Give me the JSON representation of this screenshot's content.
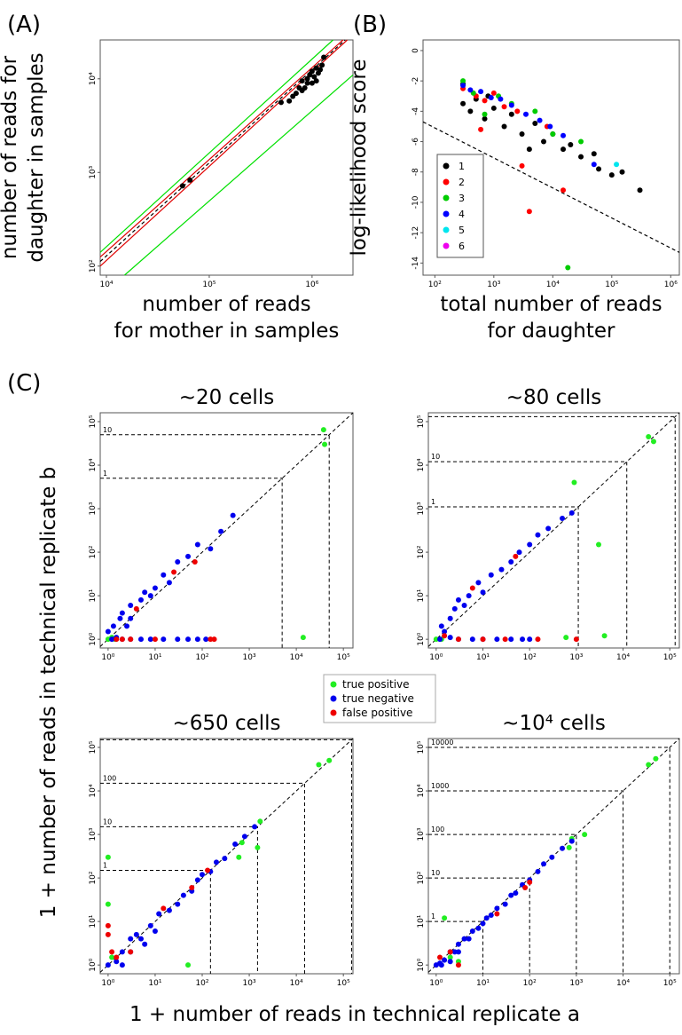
{
  "figure": {
    "panel_labels": [
      "(A)",
      "(B)",
      "(C)"
    ],
    "c_ylabel": "1 + number of reads in technical replicate b",
    "c_xlabel": "1 + number of reads in technical replicate a"
  },
  "chart_data": [
    {
      "type": "scatter",
      "log_x": true,
      "log_y": true,
      "xlabel": [
        "number of reads",
        "for mother in samples"
      ],
      "ylabel": [
        "number of reads for",
        "daughter in samples"
      ],
      "xlim": [
        8700,
        2500000
      ],
      "ylim": [
        80,
        26000
      ],
      "xticks": [
        {
          "value": 10000,
          "label": "10⁴"
        },
        {
          "value": 100000,
          "label": "10⁵"
        },
        {
          "value": 1000000,
          "label": "10⁶"
        }
      ],
      "yticks": [
        {
          "value": 100,
          "label": "10²"
        },
        {
          "value": 1000,
          "label": "10³"
        },
        {
          "value": 10000,
          "label": "10⁴"
        }
      ],
      "lines": [
        {
          "color": "#00e000",
          "dashed": false,
          "x": [
            8700,
            1600000
          ],
          "y": [
            140,
            26000
          ]
        },
        {
          "color": "#00e000",
          "dashed": false,
          "x": [
            15000,
            2500000
          ],
          "y": [
            80,
            11000
          ]
        },
        {
          "color": "#e00000",
          "dashed": false,
          "x": [
            8700,
            2000000
          ],
          "y": [
            125,
            26000
          ]
        },
        {
          "color": "#e00000",
          "dashed": false,
          "x": [
            8700,
            2200000
          ],
          "y": [
            100,
            26000
          ]
        },
        {
          "color": "#000000",
          "dashed": true,
          "x": [
            8700,
            2100000
          ],
          "y": [
            112,
            26000
          ]
        }
      ],
      "series": [
        {
          "color": "#000000",
          "x": [
            55000,
            65000,
            500000,
            600000,
            650000,
            700000,
            750000,
            800000,
            850000,
            900000,
            950000,
            1000000,
            1050000,
            1100000,
            1150000,
            1200000,
            1300000,
            1250000,
            900000,
            800000,
            1000000,
            1100000
          ],
          "values": [
            720,
            830,
            5600,
            5800,
            6500,
            7000,
            8000,
            9500,
            8000,
            10000,
            11000,
            12000,
            10500,
            13000,
            11500,
            12500,
            17000,
            14000,
            9000,
            7500,
            9000,
            9500
          ]
        }
      ]
    },
    {
      "type": "scatter",
      "log_x": true,
      "log_y": false,
      "xlabel": [
        "total number of reads",
        "for daughter"
      ],
      "ylabel": [
        "log-likelihood score"
      ],
      "xlim": [
        63,
        1400000
      ],
      "ylim": [
        -14.8,
        0.7
      ],
      "xticks": [
        {
          "value": 100,
          "label": "10²"
        },
        {
          "value": 1000,
          "label": "10³"
        },
        {
          "value": 10000,
          "label": "10⁴"
        },
        {
          "value": 100000,
          "label": "10⁵"
        },
        {
          "value": 1000000,
          "label": "10⁶"
        }
      ],
      "yticks": [
        0,
        -2,
        -4,
        -6,
        -8,
        -10,
        -12,
        -14
      ],
      "lines": [
        {
          "color": "#000000",
          "dashed": true,
          "x": [
            63,
            1400000
          ],
          "y": [
            -4.7,
            -13.3
          ]
        }
      ],
      "legend": "bottom-left",
      "series": [
        {
          "name": "1",
          "color": "#000000",
          "x": [
            300,
            400,
            500,
            700,
            1000,
            1500,
            2000,
            3000,
            5000,
            7000,
            10000,
            15000,
            20000,
            30000,
            50000,
            60000,
            100000,
            150000,
            300000,
            4000,
            800,
            300
          ],
          "values": [
            -3.5,
            -4,
            -3.2,
            -4.5,
            -3.8,
            -5,
            -4.2,
            -5.5,
            -4.8,
            -6,
            -5.5,
            -6.5,
            -6.2,
            -7,
            -6.8,
            -7.8,
            -8.2,
            -8,
            -9.2,
            -6.5,
            -3,
            -2.2
          ]
        },
        {
          "name": "2",
          "color": "#ff0000",
          "x": [
            300,
            500,
            700,
            1000,
            1500,
            2500,
            3000,
            4000,
            15000,
            8000,
            600
          ],
          "values": [
            -2.5,
            -3,
            -3.3,
            -2.8,
            -3.7,
            -4,
            -7.6,
            -10.6,
            -9.2,
            -5,
            -5.2
          ]
        },
        {
          "name": "3",
          "color": "#00cc00",
          "x": [
            300,
            450,
            700,
            1200,
            2000,
            5000,
            10000,
            30000,
            18000
          ],
          "values": [
            -2,
            -2.8,
            -4.2,
            -3,
            -3.5,
            -4,
            -5.5,
            -6,
            -14.3
          ]
        },
        {
          "name": "4",
          "color": "#0000ff",
          "x": [
            300,
            400,
            600,
            900,
            1300,
            2000,
            3500,
            6000,
            9000,
            15000,
            50000
          ],
          "values": [
            -2.3,
            -2.6,
            -2.7,
            -3.1,
            -3.2,
            -3.6,
            -4.2,
            -4.6,
            -5,
            -5.6,
            -7.5
          ]
        },
        {
          "name": "5",
          "color": "#00e5ee",
          "x": [
            120000
          ],
          "values": [
            -7.5
          ]
        },
        {
          "name": "6",
          "color": "#ee00ee",
          "x": [],
          "values": []
        }
      ]
    },
    {
      "type": "scatter",
      "log_x": true,
      "log_y": true,
      "title": "~20 cells",
      "diagonal": true,
      "legend": "below",
      "xlim": [
        0.68,
        160000
      ],
      "ylim": [
        0.63,
        160000
      ],
      "xticks": [
        {
          "value": 1,
          "label": "10⁰"
        },
        {
          "value": 10,
          "label": "10¹"
        },
        {
          "value": 100,
          "label": "10²"
        },
        {
          "value": 1000,
          "label": "10³"
        },
        {
          "value": 10000,
          "label": "10⁴"
        },
        {
          "value": 100000,
          "label": "10⁵"
        }
      ],
      "yticks": [
        {
          "value": 1,
          "label": "10⁰"
        },
        {
          "value": 10,
          "label": "10¹"
        },
        {
          "value": 100,
          "label": "10²"
        },
        {
          "value": 1000,
          "label": "10³"
        },
        {
          "value": 10000,
          "label": "10⁴"
        },
        {
          "value": 100000,
          "label": "10⁵"
        }
      ],
      "threshold_values": [
        5000,
        50000
      ],
      "threshold_labels": [
        "1",
        "10"
      ],
      "series": [
        {
          "name": "true positive",
          "color": "#22ee22",
          "x": [
            1,
            1.2,
            1.4,
            14000,
            40000,
            38000
          ],
          "values": [
            1,
            1.1,
            1,
            1.1,
            30000,
            65000
          ]
        },
        {
          "name": "true negative",
          "color": "#0000ee",
          "x": [
            1.2,
            1.5,
            2,
            3,
            5,
            8,
            15,
            30,
            50,
            80,
            120,
            1.3,
            1.8,
            2,
            3,
            3,
            5,
            6,
            10,
            15,
            20,
            30,
            50,
            80,
            150,
            250,
            450,
            1,
            2.5,
            8
          ],
          "values": [
            1,
            1.1,
            1,
            1,
            1,
            1,
            1,
            1,
            1,
            1,
            1,
            2,
            3,
            4,
            3,
            6,
            8,
            12,
            15,
            30,
            20,
            60,
            80,
            150,
            120,
            300,
            700,
            1.5,
            2,
            10
          ]
        },
        {
          "name": "false positive",
          "color": "#ee0000",
          "x": [
            1.5,
            2,
            3,
            10,
            150,
            180,
            4,
            25,
            70
          ],
          "values": [
            1,
            1,
            1,
            1,
            1,
            1,
            5,
            35,
            60
          ]
        }
      ]
    },
    {
      "type": "scatter",
      "log_x": true,
      "log_y": true,
      "title": "~80 cells",
      "diagonal": true,
      "xlim": [
        0.68,
        160000
      ],
      "ylim": [
        0.63,
        160000
      ],
      "xticks": [
        {
          "value": 1,
          "label": "10⁰"
        },
        {
          "value": 10,
          "label": "10¹"
        },
        {
          "value": 100,
          "label": "10²"
        },
        {
          "value": 1000,
          "label": "10³"
        },
        {
          "value": 10000,
          "label": "10⁴"
        },
        {
          "value": 100000,
          "label": "10⁵"
        }
      ],
      "yticks": [
        {
          "value": 1,
          "label": "10⁰"
        },
        {
          "value": 10,
          "label": "10¹"
        },
        {
          "value": 100,
          "label": "10²"
        },
        {
          "value": 1000,
          "label": "10³"
        },
        {
          "value": 10000,
          "label": "10⁴"
        },
        {
          "value": 100000,
          "label": "10⁵"
        }
      ],
      "threshold_values": [
        1100,
        12000,
        130000
      ],
      "threshold_labels": [
        "1",
        "10",
        null
      ],
      "series": [
        {
          "name": "true positive",
          "color": "#22ee22",
          "x": [
            1,
            1.3,
            600,
            900,
            3000,
            4000,
            35000,
            45000
          ],
          "values": [
            1,
            1,
            1.1,
            4000,
            150,
            1.2,
            45000,
            35000
          ]
        },
        {
          "name": "true negative",
          "color": "#0000ee",
          "x": [
            1.2,
            2,
            3,
            6,
            10,
            20,
            40,
            70,
            100,
            1.3,
            2,
            2.5,
            3,
            4,
            5,
            8,
            10,
            15,
            25,
            40,
            60,
            100,
            150,
            250,
            500,
            800,
            1.5
          ],
          "values": [
            1,
            1.1,
            1,
            1,
            1,
            1,
            1,
            1,
            1,
            2,
            3,
            5,
            8,
            6,
            10,
            20,
            12,
            30,
            40,
            60,
            100,
            150,
            250,
            350,
            600,
            800,
            1.5
          ]
        },
        {
          "name": "false positive",
          "color": "#ee0000",
          "x": [
            1.5,
            3,
            10,
            30,
            150,
            6,
            50,
            1000
          ],
          "values": [
            1.2,
            1,
            1,
            1,
            1,
            15,
            80,
            1
          ]
        }
      ]
    },
    {
      "type": "scatter",
      "log_x": true,
      "log_y": true,
      "title": "~650 cells",
      "diagonal": true,
      "xlim": [
        0.68,
        160000
      ],
      "ylim": [
        0.63,
        160000
      ],
      "xticks": [
        {
          "value": 1,
          "label": "10⁰"
        },
        {
          "value": 10,
          "label": "10¹"
        },
        {
          "value": 100,
          "label": "10²"
        },
        {
          "value": 1000,
          "label": "10³"
        },
        {
          "value": 10000,
          "label": "10⁴"
        },
        {
          "value": 100000,
          "label": "10⁵"
        }
      ],
      "yticks": [
        {
          "value": 1,
          "label": "10⁰"
        },
        {
          "value": 10,
          "label": "10¹"
        },
        {
          "value": 100,
          "label": "10²"
        },
        {
          "value": 1000,
          "label": "10³"
        },
        {
          "value": 10000,
          "label": "10⁴"
        },
        {
          "value": 100000,
          "label": "10⁵"
        }
      ],
      "threshold_values": [
        150,
        1500,
        15000,
        150000
      ],
      "threshold_labels": [
        "1",
        "10",
        "100",
        null
      ],
      "series": [
        {
          "name": "true positive",
          "color": "#22ee22",
          "x": [
            1,
            1,
            1.2,
            50,
            600,
            700,
            1500,
            1700,
            30000,
            50000
          ],
          "values": [
            25,
            300,
            1.5,
            1,
            300,
            650,
            500,
            2000,
            40000,
            50000
          ]
        },
        {
          "name": "true negative",
          "color": "#0000ee",
          "x": [
            1,
            1.5,
            2,
            3,
            4,
            5,
            8,
            10,
            12,
            20,
            30,
            40,
            60,
            80,
            100,
            150,
            200,
            300,
            500,
            800,
            1300,
            2,
            3,
            6
          ],
          "values": [
            1,
            1.2,
            2,
            2,
            5,
            4,
            8,
            6,
            15,
            18,
            25,
            40,
            50,
            90,
            120,
            140,
            230,
            280,
            600,
            900,
            1500,
            1,
            4,
            3
          ]
        },
        {
          "name": "false positive",
          "color": "#ee0000",
          "x": [
            1,
            1,
            1.2,
            1.5,
            15,
            60,
            130,
            3
          ],
          "values": [
            5,
            8,
            2,
            1.5,
            20,
            60,
            150,
            2
          ]
        }
      ]
    },
    {
      "type": "scatter",
      "log_x": true,
      "log_y": true,
      "title": "~10⁴ cells",
      "diagonal": true,
      "xlim": [
        0.68,
        160000
      ],
      "ylim": [
        0.63,
        160000
      ],
      "xticks": [
        {
          "value": 1,
          "label": "10⁰"
        },
        {
          "value": 10,
          "label": "10¹"
        },
        {
          "value": 100,
          "label": "10²"
        },
        {
          "value": 1000,
          "label": "10³"
        },
        {
          "value": 10000,
          "label": "10⁴"
        },
        {
          "value": 100000,
          "label": "10⁵"
        }
      ],
      "yticks": [
        {
          "value": 1,
          "label": "10⁰"
        },
        {
          "value": 10,
          "label": "10¹"
        },
        {
          "value": 100,
          "label": "10²"
        },
        {
          "value": 1000,
          "label": "10³"
        },
        {
          "value": 10000,
          "label": "10⁴"
        },
        {
          "value": 100000,
          "label": "10⁵"
        }
      ],
      "threshold_values": [
        10,
        100,
        1000,
        10000,
        100000
      ],
      "threshold_labels": [
        "1",
        "10",
        "100",
        "1000",
        "10000"
      ],
      "series": [
        {
          "name": "true positive",
          "color": "#22ee22",
          "x": [
            1.5,
            2,
            3,
            800,
            700,
            1500,
            35000,
            50000
          ],
          "values": [
            12,
            1.5,
            1.2,
            800,
            500,
            1000,
            40000,
            55000
          ]
        },
        {
          "name": "true negative",
          "color": "#0000ee",
          "x": [
            1,
            1.2,
            1.5,
            2,
            2.5,
            3,
            4,
            5,
            6,
            8,
            10,
            12,
            15,
            20,
            30,
            40,
            50,
            70,
            100,
            150,
            200,
            300,
            500,
            800,
            1.3,
            2,
            3
          ],
          "values": [
            1,
            1.1,
            1.3,
            2,
            2,
            3,
            4,
            4,
            6,
            7,
            9,
            12,
            14,
            20,
            25,
            40,
            45,
            70,
            90,
            140,
            210,
            300,
            480,
            700,
            1,
            1.2,
            2
          ]
        },
        {
          "name": "false positive",
          "color": "#ee0000",
          "x": [
            1.2,
            2,
            3,
            20,
            80,
            100
          ],
          "values": [
            1.5,
            2,
            1,
            15,
            60,
            80
          ]
        }
      ]
    }
  ]
}
